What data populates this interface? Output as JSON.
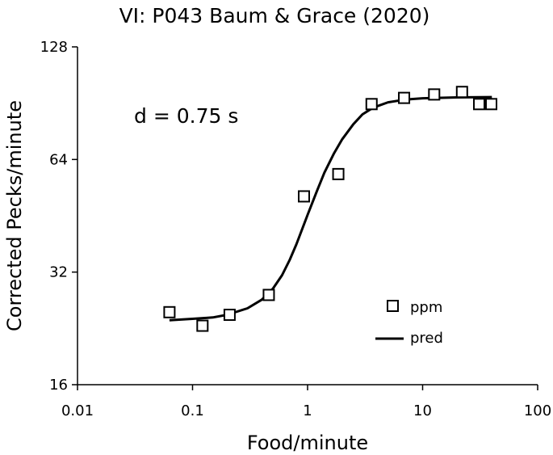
{
  "chart_data": {
    "type": "scatter",
    "title": "VI: P043 Baum & Grace (2020)",
    "xlabel": "Food/minute",
    "ylabel": "Corrected Pecks/minute",
    "x_scale": "log10",
    "y_scale": "log2",
    "xlim": [
      0.01,
      100
    ],
    "ylim": [
      16,
      128
    ],
    "x_ticks": [
      "0.01",
      "0.1",
      "1",
      "10",
      "100"
    ],
    "y_ticks": [
      "16",
      "32",
      "64",
      "128"
    ],
    "grid": false,
    "annotation": "d = 0.75 s",
    "legend": {
      "placement": "bottom-right",
      "entries": [
        {
          "label": "ppm",
          "marker": "hollow-square"
        },
        {
          "label": "pred",
          "marker": "line"
        }
      ]
    },
    "series": [
      {
        "name": "ppm",
        "kind": "points",
        "points": [
          {
            "x": 0.063,
            "y": 25.0
          },
          {
            "x": 0.122,
            "y": 23.0
          },
          {
            "x": 0.21,
            "y": 24.6
          },
          {
            "x": 0.46,
            "y": 27.8
          },
          {
            "x": 0.93,
            "y": 51.0
          },
          {
            "x": 1.85,
            "y": 58.5
          },
          {
            "x": 3.6,
            "y": 90.0
          },
          {
            "x": 6.9,
            "y": 93.5
          },
          {
            "x": 12.6,
            "y": 95.5
          },
          {
            "x": 22.0,
            "y": 97.0
          },
          {
            "x": 31.0,
            "y": 90.0
          },
          {
            "x": 39.5,
            "y": 90.0
          }
        ]
      },
      {
        "name": "pred",
        "kind": "line",
        "points": [
          {
            "x": 0.063,
            "y": 23.8
          },
          {
            "x": 0.1,
            "y": 24.0
          },
          {
            "x": 0.15,
            "y": 24.2
          },
          {
            "x": 0.2,
            "y": 24.6
          },
          {
            "x": 0.3,
            "y": 25.6
          },
          {
            "x": 0.4,
            "y": 27.0
          },
          {
            "x": 0.5,
            "y": 28.9
          },
          {
            "x": 0.6,
            "y": 31.4
          },
          {
            "x": 0.7,
            "y": 34.5
          },
          {
            "x": 0.8,
            "y": 38.0
          },
          {
            "x": 1.0,
            "y": 45.5
          },
          {
            "x": 1.2,
            "y": 52.5
          },
          {
            "x": 1.4,
            "y": 59.0
          },
          {
            "x": 1.7,
            "y": 66.5
          },
          {
            "x": 2.0,
            "y": 72.5
          },
          {
            "x": 2.5,
            "y": 79.5
          },
          {
            "x": 3.0,
            "y": 84.5
          },
          {
            "x": 3.7,
            "y": 88.0
          },
          {
            "x": 5.0,
            "y": 91.0
          },
          {
            "x": 7.0,
            "y": 92.5
          },
          {
            "x": 10.0,
            "y": 93.3
          },
          {
            "x": 20.0,
            "y": 93.8
          },
          {
            "x": 40.0,
            "y": 94.0
          }
        ]
      }
    ]
  }
}
